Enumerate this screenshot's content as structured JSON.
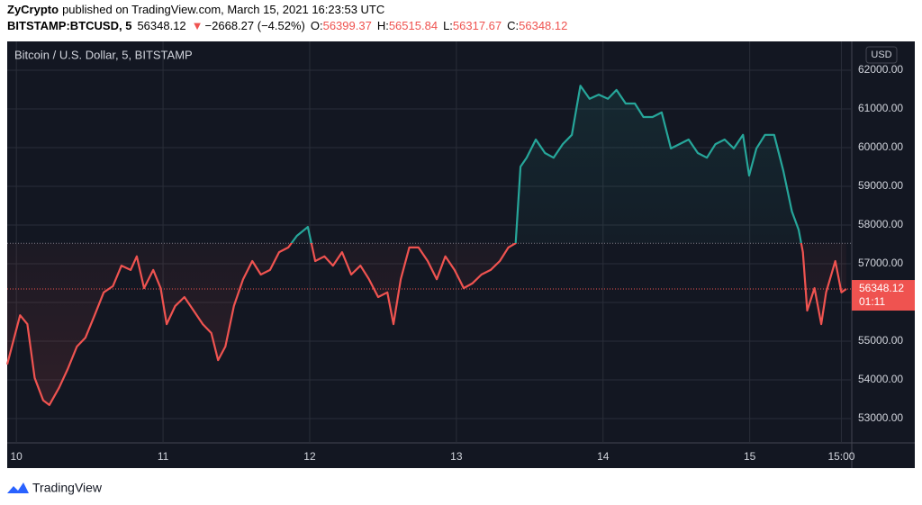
{
  "header": {
    "author": "ZyCrypto",
    "published": "published on TradingView.com, March 15, 2021 16:23:53 UTC",
    "symbol": "BITSTAMP:BTCUSD, 5",
    "last": "56348.12",
    "change": "−2668.27 (−4.52%)",
    "ohlc": [
      {
        "label": "O:",
        "value": "56399.37"
      },
      {
        "label": "H:",
        "value": "56515.84"
      },
      {
        "label": "L:",
        "value": "56317.67"
      },
      {
        "label": "C:",
        "value": "56348.12"
      }
    ]
  },
  "chart_data": {
    "type": "line",
    "title": "Bitcoin / U.S. Dollar, 5, BITSTAMP",
    "axis_unit": "USD",
    "countdown": "01:11",
    "x": [
      -1.5,
      0.6,
      1.8,
      3,
      4.4,
      5.4,
      7,
      8.4,
      9.9,
      11.3,
      12.8,
      14.3,
      15.8,
      17.2,
      18.7,
      19.7,
      20.9,
      22.4,
      23.6,
      24.6,
      26,
      27.5,
      29,
      30.5,
      31.9,
      33,
      34.2,
      35.6,
      37.1,
      38.6,
      40,
      41.5,
      43,
      44.5,
      45.9,
      47.7,
      48.9,
      50.4,
      51.8,
      53.3,
      54.8,
      56.3,
      57.7,
      59.2,
      60.7,
      61.7,
      62.9,
      64.3,
      65.8,
      67.3,
      68.8,
      70.2,
      71.7,
      73.2,
      74.6,
      76.1,
      77.6,
      79.1,
      80.5,
      81.7,
      82.5,
      83.5,
      85,
      86.5,
      87.9,
      89.4,
      90.9,
      92.3,
      93.8,
      95.3,
      96.8,
      98.2,
      99.7,
      101.2,
      102.6,
      104.1,
      105.6,
      107.1,
      108.5,
      110,
      111.5,
      113,
      114.4,
      115.9,
      117.4,
      118.9,
      119.9,
      121.1,
      122.5,
      124,
      125.5,
      126.9,
      128,
      128.7,
      129.4,
      130.6,
      131.7,
      132.5,
      134,
      135,
      135.8
    ],
    "values": [
      54400,
      55670,
      55440,
      54050,
      53470,
      53350,
      53800,
      54280,
      54860,
      55090,
      55670,
      56260,
      56420,
      56950,
      56840,
      57190,
      56370,
      56840,
      56370,
      55440,
      55910,
      56140,
      55790,
      55440,
      55210,
      54510,
      54860,
      55910,
      56600,
      57070,
      56720,
      56840,
      57300,
      57420,
      57720,
      57950,
      57070,
      57190,
      56950,
      57300,
      56720,
      56950,
      56600,
      56140,
      56260,
      55440,
      56600,
      57420,
      57420,
      57070,
      56600,
      57190,
      56840,
      56370,
      56490,
      56720,
      56840,
      57070,
      57420,
      57530,
      59510,
      59740,
      60210,
      59860,
      59740,
      60090,
      60330,
      61600,
      61260,
      61370,
      61260,
      61490,
      61140,
      61140,
      60790,
      60790,
      60910,
      59980,
      60090,
      60210,
      59860,
      59740,
      60090,
      60210,
      59980,
      60330,
      59280,
      59980,
      60330,
      60330,
      59400,
      58350,
      57880,
      57300,
      55790,
      56370,
      55440,
      56260,
      57070,
      56260,
      56348.12
    ],
    "xlim": [
      -1.5,
      136.7
    ],
    "ylim": [
      52372,
      62744
    ],
    "xticks": [
      {
        "value": 0,
        "label": "10"
      },
      {
        "value": 24,
        "label": "11"
      },
      {
        "value": 48,
        "label": "12"
      },
      {
        "value": 72,
        "label": "13"
      },
      {
        "value": 96,
        "label": "14"
      },
      {
        "value": 120,
        "label": "15"
      },
      {
        "value": 135,
        "label": "15:00"
      }
    ],
    "yticks": [
      {
        "value": 53000,
        "label": "53000.00"
      },
      {
        "value": 54000,
        "label": "54000.00"
      },
      {
        "value": 55000,
        "label": "55000.00"
      },
      {
        "value": 56000,
        "label": "56000.00"
      },
      {
        "value": 57000,
        "label": "57000.00"
      },
      {
        "value": 58000,
        "label": "58000.00"
      },
      {
        "value": 59000,
        "label": "59000.00"
      },
      {
        "value": 60000,
        "label": "60000.00"
      },
      {
        "value": 61000,
        "label": "61000.00"
      },
      {
        "value": 62000,
        "label": "62000.00"
      }
    ],
    "baseline": 57530,
    "color_above": "#26a69a",
    "color_below": "#ef5350",
    "grid": true
  },
  "footer": {
    "brand": "TradingView"
  }
}
